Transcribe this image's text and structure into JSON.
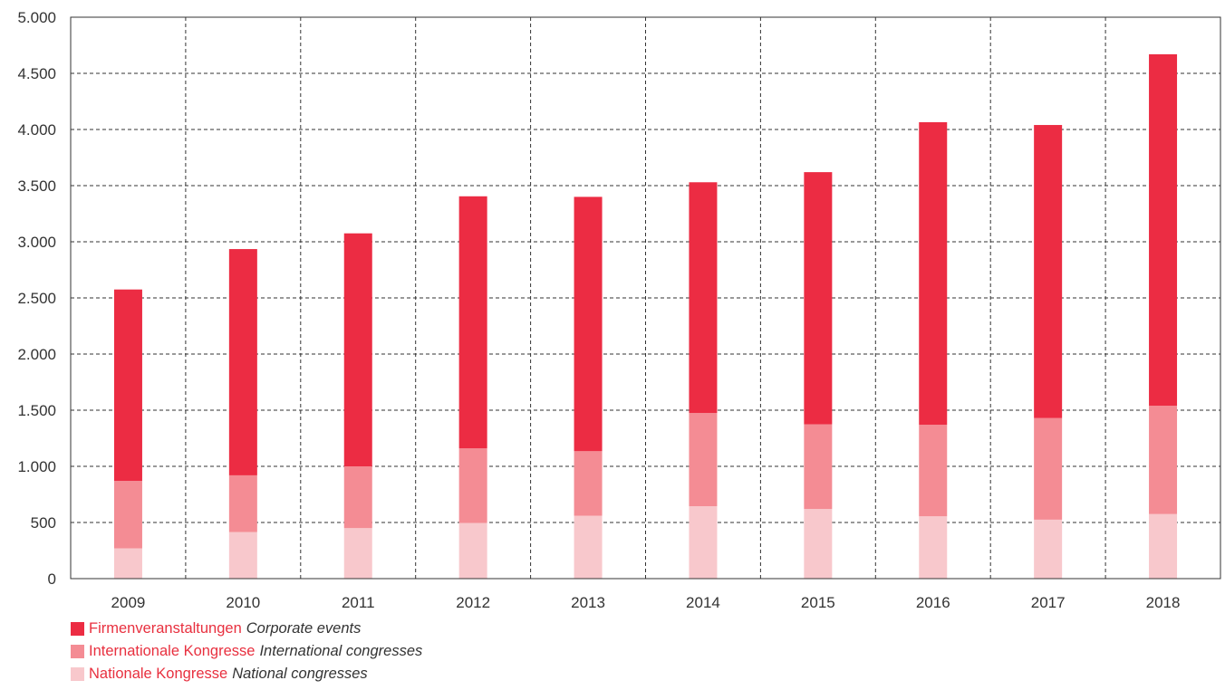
{
  "chart_data": {
    "type": "bar",
    "stacked": true,
    "categories": [
      "2009",
      "2010",
      "2011",
      "2012",
      "2013",
      "2014",
      "2015",
      "2016",
      "2017",
      "2018"
    ],
    "series": [
      {
        "name": "Nationale Kongresse",
        "name_en": "National congresses",
        "color": "#f8c8cc",
        "values": [
          270,
          415,
          450,
          495,
          560,
          645,
          620,
          555,
          525,
          575
        ]
      },
      {
        "name": "Internationale Kongresse",
        "name_en": "International congresses",
        "color": "#f48c94",
        "values": [
          600,
          505,
          550,
          665,
          575,
          830,
          755,
          815,
          905,
          965
        ]
      },
      {
        "name": "Firmenveranstaltungen",
        "name_en": "Corporate events",
        "color": "#ec2c43",
        "values": [
          1705,
          2015,
          2075,
          2245,
          2265,
          2055,
          2245,
          2695,
          2610,
          3130
        ]
      }
    ],
    "ylim": [
      0,
      5000
    ],
    "yticks": [
      0,
      500,
      1000,
      1500,
      2000,
      2500,
      3000,
      3500,
      4000,
      4500,
      5000
    ],
    "ytick_labels": [
      "0",
      "500",
      "1.000",
      "1.500",
      "2.000",
      "2.500",
      "3.000",
      "3.500",
      "4.000",
      "4.500",
      "5.000"
    ],
    "grid": true,
    "legend_position": "bottom-left"
  },
  "legend": [
    {
      "de": "Firmenveranstaltungen",
      "en": "Corporate events",
      "color": "#ec2c43"
    },
    {
      "de": "Internationale Kongresse",
      "en": "International congresses",
      "color": "#f48c94"
    },
    {
      "de": "Nationale Kongresse",
      "en": "National congresses",
      "color": "#f8c8cc"
    }
  ]
}
